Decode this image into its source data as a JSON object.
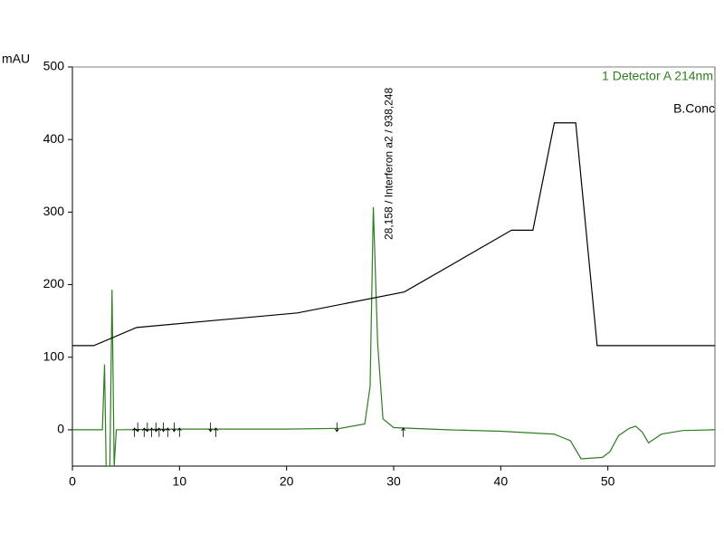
{
  "chart_data": {
    "type": "line",
    "y_label": "mAU",
    "annotation": {
      "text": "28,158 / Interferon a2 / 938,248",
      "x": 28.158
    },
    "xlim": [
      0,
      60
    ],
    "ylim": [
      -50,
      500
    ],
    "xticks": [
      0,
      10,
      20,
      30,
      40,
      50
    ],
    "yticks": [
      0,
      100,
      200,
      300,
      400,
      500
    ],
    "grid": false,
    "series": [
      {
        "name": "1 Detector A 214nm",
        "color": "#2e7d1f",
        "x": [
          0,
          2.8,
          3.0,
          3.15,
          3.5,
          3.7,
          3.9,
          4.1,
          10,
          20,
          25,
          27.3,
          27.8,
          28.1,
          28.5,
          29.0,
          30,
          35,
          40,
          45,
          46.5,
          47.5,
          49.5,
          50.2,
          51,
          52,
          52.6,
          53.2,
          53.8,
          55,
          57,
          60
        ],
        "values": [
          0,
          0,
          90,
          -50,
          -50,
          193,
          -50,
          0,
          1,
          1,
          2,
          8,
          60,
          307,
          120,
          15,
          3,
          0,
          -2,
          -6,
          -15,
          -40,
          -38,
          -30,
          -8,
          2,
          5,
          -3,
          -18,
          -6,
          -1,
          0
        ]
      },
      {
        "name": "B.Conc",
        "color": "#000000",
        "x": [
          0,
          2,
          6,
          21,
          31,
          41,
          43,
          45,
          47,
          49,
          60
        ],
        "values": [
          116,
          116,
          141,
          161,
          190,
          275,
          275,
          423,
          423,
          116,
          116
        ]
      }
    ],
    "integration_marks": [
      5.8,
      6.1,
      6.7,
      7.0,
      7.4,
      7.8,
      8.1,
      8.5,
      8.9,
      9.5,
      10.0,
      12.9,
      13.4,
      24.7,
      30.9
    ]
  }
}
